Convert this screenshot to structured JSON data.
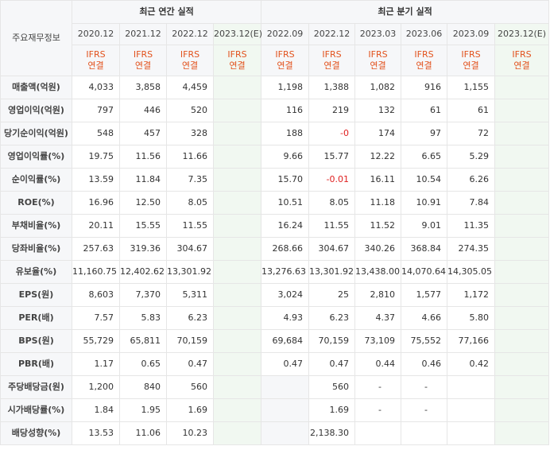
{
  "header": {
    "corner_label": "주요재무정보",
    "annual_group": "최근 연간 실적",
    "quarterly_group": "최근 분기 실적",
    "annual_dates": [
      "2020.12",
      "2021.12",
      "2022.12",
      "2023.12(E)"
    ],
    "quarterly_dates": [
      "2022.09",
      "2022.12",
      "2023.03",
      "2023.06",
      "2023.09",
      "2023.12(E)"
    ],
    "type_line1": "IFRS",
    "type_line2": "연결"
  },
  "rows": [
    {
      "label": "매출액(억원)",
      "values": [
        "4,033",
        "3,858",
        "4,459",
        "",
        "1,198",
        "1,388",
        "1,082",
        "916",
        "1,155",
        ""
      ]
    },
    {
      "label": "영업이익(억원)",
      "values": [
        "797",
        "446",
        "520",
        "",
        "116",
        "219",
        "132",
        "61",
        "61",
        ""
      ]
    },
    {
      "label": "당기순이익(억원)",
      "values": [
        "548",
        "457",
        "328",
        "",
        "188",
        "-0",
        "174",
        "97",
        "72",
        ""
      ]
    },
    {
      "label": "영업이익률(%)",
      "values": [
        "19.75",
        "11.56",
        "11.66",
        "",
        "9.66",
        "15.77",
        "12.22",
        "6.65",
        "5.29",
        ""
      ]
    },
    {
      "label": "순이익률(%)",
      "values": [
        "13.59",
        "11.84",
        "7.35",
        "",
        "15.70",
        "-0.01",
        "16.11",
        "10.54",
        "6.26",
        ""
      ]
    },
    {
      "label": "ROE(%)",
      "values": [
        "16.96",
        "12.50",
        "8.05",
        "",
        "10.51",
        "8.05",
        "11.18",
        "10.91",
        "7.84",
        ""
      ]
    },
    {
      "label": "부채비율(%)",
      "values": [
        "20.11",
        "15.55",
        "11.55",
        "",
        "16.24",
        "11.55",
        "11.52",
        "9.01",
        "11.35",
        ""
      ]
    },
    {
      "label": "당좌비율(%)",
      "values": [
        "257.63",
        "319.36",
        "304.67",
        "",
        "268.66",
        "304.67",
        "340.26",
        "368.84",
        "274.35",
        ""
      ]
    },
    {
      "label": "유보율(%)",
      "values": [
        "11,160.75",
        "12,402.62",
        "13,301.92",
        "",
        "13,276.63",
        "13,301.92",
        "13,438.00",
        "14,070.64",
        "14,305.05",
        ""
      ]
    },
    {
      "label": "EPS(원)",
      "values": [
        "8,603",
        "7,370",
        "5,311",
        "",
        "3,024",
        "25",
        "2,810",
        "1,577",
        "1,172",
        ""
      ]
    },
    {
      "label": "PER(배)",
      "values": [
        "7.57",
        "5.83",
        "6.23",
        "",
        "4.93",
        "6.23",
        "4.37",
        "4.66",
        "5.80",
        ""
      ]
    },
    {
      "label": "BPS(원)",
      "values": [
        "55,729",
        "65,811",
        "70,159",
        "",
        "69,684",
        "70,159",
        "73,109",
        "75,552",
        "77,166",
        ""
      ]
    },
    {
      "label": "PBR(배)",
      "values": [
        "1.17",
        "0.65",
        "0.47",
        "",
        "0.47",
        "0.47",
        "0.44",
        "0.46",
        "0.42",
        ""
      ]
    },
    {
      "label": "주당배당금(원)",
      "values": [
        "1,200",
        "840",
        "560",
        "",
        "",
        "560",
        "-",
        "-",
        "",
        ""
      ]
    },
    {
      "label": "시가배당률(%)",
      "values": [
        "1.84",
        "1.95",
        "1.69",
        "",
        "",
        "1.69",
        "-",
        "-",
        "",
        ""
      ]
    },
    {
      "label": "배당성향(%)",
      "values": [
        "13.53",
        "11.06",
        "10.23",
        "",
        "",
        "2,138.30",
        "",
        "",
        "",
        ""
      ]
    }
  ]
}
